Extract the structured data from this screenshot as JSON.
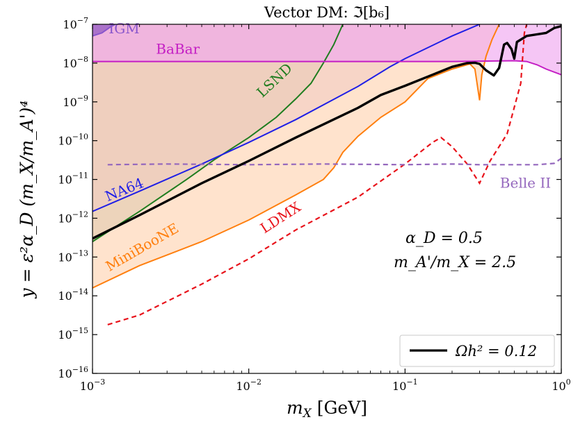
{
  "chart_data": {
    "type": "line",
    "title": "Vector DM: ℑ[b₆]",
    "xlabel": "m_X [GeV]",
    "ylabel": "y = ε²α_D (m_X/m_A')⁴",
    "xscale": "log",
    "yscale": "log",
    "xlim": [
      0.001,
      1
    ],
    "ylim": [
      1e-16,
      1e-07
    ],
    "x_ticks": [
      {
        "value": 0.001,
        "base": "10",
        "exp": "−3"
      },
      {
        "value": 0.01,
        "base": "10",
        "exp": "−2"
      },
      {
        "value": 0.1,
        "base": "10",
        "exp": "−1"
      },
      {
        "value": 1,
        "base": "10",
        "exp": "0"
      }
    ],
    "y_ticks": [
      {
        "value": 1e-16,
        "base": "10",
        "exp": "−16"
      },
      {
        "value": 1e-15,
        "base": "10",
        "exp": "−15"
      },
      {
        "value": 1e-14,
        "base": "10",
        "exp": "−14"
      },
      {
        "value": 1e-13,
        "base": "10",
        "exp": "−13"
      },
      {
        "value": 1e-12,
        "base": "10",
        "exp": "−12"
      },
      {
        "value": 1e-11,
        "base": "10",
        "exp": "−11"
      },
      {
        "value": 1e-10,
        "base": "10",
        "exp": "−10"
      },
      {
        "value": 1e-09,
        "base": "10",
        "exp": "−9"
      },
      {
        "value": 1e-08,
        "base": "10",
        "exp": "−8"
      },
      {
        "value": 1e-07,
        "base": "10",
        "exp": "−7"
      }
    ],
    "regions": [
      {
        "name": "LSND",
        "color": "#1f7d1f",
        "fill": "#5f7a57",
        "fill_opacity": 0.55,
        "boundary": [
          [
            0.001,
            2.5e-13
          ],
          [
            0.002,
            1.5e-12
          ],
          [
            0.004,
            1e-11
          ],
          [
            0.006,
            3.2e-11
          ],
          [
            0.01,
            1.2e-10
          ],
          [
            0.015,
            4e-10
          ],
          [
            0.02,
            1.2e-09
          ],
          [
            0.025,
            3e-09
          ],
          [
            0.03,
            1e-08
          ],
          [
            0.035,
            3e-08
          ],
          [
            0.04,
            1e-07
          ]
        ]
      },
      {
        "name": "NA64",
        "color": "#1f1fe6",
        "fill": "#b283c2",
        "fill_opacity": 0.55,
        "boundary": [
          [
            0.001,
            1.5e-12
          ],
          [
            0.002,
            5e-12
          ],
          [
            0.005,
            2.5e-11
          ],
          [
            0.01,
            9e-11
          ],
          [
            0.02,
            3.5e-10
          ],
          [
            0.05,
            2.5e-09
          ],
          [
            0.08,
            8e-09
          ],
          [
            0.1,
            1.3e-08
          ],
          [
            0.2,
            5e-08
          ],
          [
            0.3,
            1e-07
          ]
        ]
      },
      {
        "name": "MiniBooNE",
        "color": "#ff7f0e",
        "fill": "#ffdcc0",
        "fill_opacity": 0.8,
        "boundary": [
          [
            0.001,
            1.6e-14
          ],
          [
            0.002,
            6e-14
          ],
          [
            0.005,
            2.5e-13
          ],
          [
            0.01,
            9e-13
          ],
          [
            0.02,
            4e-12
          ],
          [
            0.03,
            1e-11
          ],
          [
            0.035,
            2e-11
          ],
          [
            0.04,
            5e-11
          ],
          [
            0.05,
            1.3e-10
          ],
          [
            0.07,
            4e-10
          ],
          [
            0.1,
            1e-09
          ],
          [
            0.14,
            4e-09
          ],
          [
            0.2,
            7e-09
          ],
          [
            0.26,
            9.5e-09
          ],
          [
            0.28,
            7e-09
          ],
          [
            0.3,
            1.1e-09
          ],
          [
            0.31,
            5e-09
          ],
          [
            0.33,
            1.5e-08
          ],
          [
            0.36,
            4e-08
          ],
          [
            0.4,
            1e-07
          ]
        ]
      },
      {
        "name": "BaBar",
        "color": "#c41ec4",
        "fill": "#f0a8f0",
        "fill_opacity": 0.65,
        "boundary": [
          [
            0.001,
            1.1e-08
          ],
          [
            0.2,
            1.1e-08
          ],
          [
            0.5,
            1.15e-08
          ],
          [
            0.6,
            1.1e-08
          ],
          [
            0.7,
            9e-09
          ],
          [
            0.8,
            7e-09
          ],
          [
            1,
            5e-09
          ]
        ]
      },
      {
        "name": "IGM",
        "color": "#8855cc",
        "fill": "#9a62c4",
        "fill_opacity": 0.8,
        "boundary": [
          [
            0.001,
            5e-08
          ],
          [
            0.00115,
            6e-08
          ],
          [
            0.0013,
            8.5e-08
          ],
          [
            0.0014,
            1e-07
          ]
        ]
      }
    ],
    "projections": [
      {
        "name": "LDMX",
        "color": "#e8131b",
        "style": "dashed",
        "points": [
          [
            0.00125,
            1.8e-15
          ],
          [
            0.002,
            3.2e-15
          ],
          [
            0.005,
            2e-14
          ],
          [
            0.01,
            9e-14
          ],
          [
            0.02,
            5e-13
          ],
          [
            0.05,
            3.5e-12
          ],
          [
            0.1,
            2.5e-11
          ],
          [
            0.15,
            9e-11
          ],
          [
            0.17,
            1.2e-10
          ],
          [
            0.2,
            7e-11
          ],
          [
            0.25,
            2.5e-11
          ],
          [
            0.3,
            8e-12
          ],
          [
            0.35,
            3e-11
          ],
          [
            0.45,
            1.5e-10
          ],
          [
            0.55,
            3e-09
          ],
          [
            0.58,
            6e-08
          ],
          [
            0.6,
            1e-07
          ]
        ]
      },
      {
        "name": "Belle II",
        "color": "#9467bd",
        "style": "dashed",
        "points": [
          [
            0.00125,
            2.4e-11
          ],
          [
            0.003,
            2.5e-11
          ],
          [
            0.01,
            2.4e-11
          ],
          [
            0.03,
            2.5e-11
          ],
          [
            0.1,
            2.4e-11
          ],
          [
            0.2,
            2.5e-11
          ],
          [
            0.3,
            2.4e-11
          ],
          [
            0.5,
            2.4e-11
          ],
          [
            0.7,
            2.4e-11
          ],
          [
            0.9,
            2.6e-11
          ],
          [
            1,
            3.5e-11
          ]
        ]
      }
    ],
    "relic": {
      "name": "Ωh² = 0.12",
      "color": "#000000",
      "points": [
        [
          0.001,
          3e-13
        ],
        [
          0.002,
          1.2e-12
        ],
        [
          0.005,
          8e-12
        ],
        [
          0.01,
          3e-11
        ],
        [
          0.02,
          1.2e-10
        ],
        [
          0.05,
          7e-10
        ],
        [
          0.07,
          1.5e-09
        ],
        [
          0.1,
          2.6e-09
        ],
        [
          0.15,
          5e-09
        ],
        [
          0.2,
          8e-09
        ],
        [
          0.25,
          1e-08
        ],
        [
          0.28,
          1.02e-08
        ],
        [
          0.3,
          9.5e-09
        ],
        [
          0.33,
          6.5e-09
        ],
        [
          0.37,
          4.8e-09
        ],
        [
          0.4,
          7.5e-09
        ],
        [
          0.43,
          3e-08
        ],
        [
          0.45,
          3.3e-08
        ],
        [
          0.48,
          2.3e-08
        ],
        [
          0.5,
          1.3e-08
        ],
        [
          0.52,
          3.5e-08
        ],
        [
          0.6,
          5e-08
        ],
        [
          0.8,
          6e-08
        ],
        [
          0.9,
          8e-08
        ],
        [
          1,
          9e-08
        ]
      ]
    },
    "labels": [
      {
        "text": "IGM",
        "color": "#8855cc",
        "x": 0.00127,
        "y": 5.8e-08,
        "rotate": 0
      },
      {
        "text": "BaBar",
        "color": "#c41ec4",
        "x": 0.00255,
        "y": 1.72e-08,
        "rotate": 0
      },
      {
        "text": "LSND",
        "color": "#1f7d1f",
        "x": 0.0122,
        "y": 1.25e-09,
        "rotate": -43
      },
      {
        "text": "NA64",
        "color": "#1f1fe6",
        "x": 0.00125,
        "y": 2.7e-12,
        "rotate": -22
      },
      {
        "text": "MiniBooNE",
        "color": "#ff7f0e",
        "x": 0.00128,
        "y": 4.2e-14,
        "rotate": -30
      },
      {
        "text": "LDMX",
        "color": "#e8131b",
        "x": 0.0126,
        "y": 4e-13,
        "rotate": -33
      },
      {
        "text": "Belle II",
        "color": "#9467bd",
        "x": 0.405,
        "y": 6.1e-12,
        "rotate": 0
      }
    ],
    "annotations": {
      "alpha": "α_D = 0.5",
      "ratio": "m_A'/m_X = 2.5"
    },
    "legend": {
      "position": "lower-right",
      "entry": "Ωh² = 0.12"
    },
    "grid": false
  }
}
